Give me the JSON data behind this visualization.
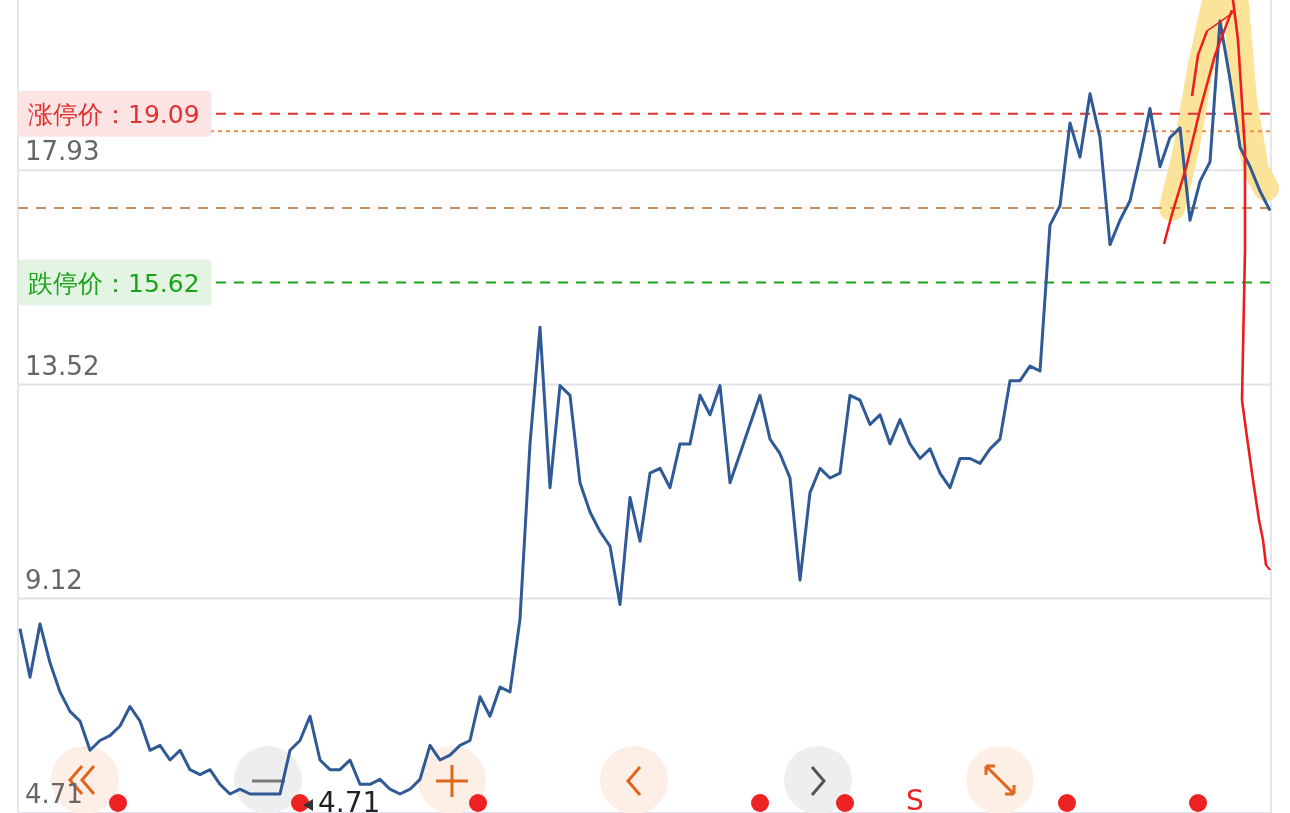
{
  "chart_data": {
    "type": "line",
    "categories": [
      null,
      null,
      null,
      null,
      null,
      null,
      null,
      null,
      null,
      null,
      null,
      null,
      null,
      null,
      null,
      null,
      null,
      null,
      null,
      null,
      null,
      null,
      null,
      null,
      null,
      null,
      null,
      null,
      null,
      null,
      null,
      null,
      null,
      null,
      null,
      null,
      null,
      null,
      null,
      null,
      null,
      null,
      null,
      null,
      null,
      null,
      null,
      null,
      null,
      null,
      null,
      null,
      null,
      null,
      null,
      null,
      null,
      null,
      null,
      null,
      null,
      null,
      null,
      null,
      null,
      null,
      null,
      null,
      null,
      null,
      null,
      null,
      null,
      null,
      null,
      null,
      null,
      null,
      null,
      null,
      null,
      null,
      null,
      null,
      null,
      null,
      null,
      null,
      null,
      null,
      null,
      null,
      null,
      null,
      null,
      null,
      null,
      null,
      null,
      null,
      null,
      null,
      null,
      null,
      null,
      null,
      null,
      null,
      null,
      null,
      null,
      null,
      null,
      null,
      null,
      null,
      null,
      null,
      null,
      null,
      null,
      null,
      null,
      null,
      null,
      null
    ],
    "series": [
      {
        "color": "#2f5a96",
        "values": [
          8.5,
          7.5,
          8.6,
          7.8,
          7.2,
          6.8,
          6.6,
          6.0,
          6.2,
          6.3,
          6.5,
          6.9,
          6.6,
          6.0,
          6.1,
          5.8,
          6.0,
          5.6,
          5.5,
          5.6,
          5.3,
          5.1,
          5.2,
          5.1,
          5.1,
          5.1,
          5.1,
          6.0,
          6.2,
          6.7,
          5.8,
          5.6,
          5.6,
          5.8,
          5.3,
          5.3,
          5.4,
          5.2,
          5.1,
          5.2,
          5.4,
          6.1,
          5.8,
          5.9,
          6.1,
          6.2,
          7.1,
          6.7,
          7.3,
          7.2,
          8.7,
          12.3,
          14.7,
          11.4,
          13.5,
          13.3,
          11.5,
          10.9,
          10.5,
          10.2,
          9.0,
          11.2,
          10.3,
          11.7,
          11.8,
          11.4,
          12.3,
          12.3,
          13.3,
          12.9,
          13.5,
          11.5,
          12.1,
          12.7,
          13.3,
          12.4,
          12.1,
          11.6,
          9.5,
          11.3,
          11.8,
          11.6,
          11.7,
          13.3,
          13.2,
          12.7,
          12.9,
          12.3,
          12.8,
          12.3,
          12.0,
          12.2,
          11.7,
          11.4,
          12.0,
          12.0,
          11.9,
          12.2,
          12.4,
          13.6,
          13.6,
          13.9,
          13.8,
          16.8,
          17.2,
          18.9,
          18.2,
          19.5,
          18.6,
          16.4,
          16.9,
          17.3,
          18.2,
          19.2,
          18.0,
          18.6,
          18.8,
          16.9,
          17.7,
          18.1,
          21.0,
          19.8,
          18.4,
          18.0,
          17.5,
          17.1
        ]
      }
    ],
    "ylim": [
      4.71,
      21.43
    ],
    "yticks": [
      4.71,
      9.12,
      13.52,
      17.93
    ],
    "grid": "y",
    "line_style": "solid",
    "ref_lines": [
      {
        "axis": "y",
        "value": 19.09,
        "label": "涨停价：19.09",
        "color": "#e03030",
        "line_style": "dashed"
      },
      {
        "axis": "y",
        "value": 18.73,
        "color": "#f08a4b",
        "line_style": "dotted"
      },
      {
        "axis": "y",
        "value": 17.15,
        "color": "#c8905a",
        "line_style": "dashed"
      },
      {
        "axis": "y",
        "value": 15.62,
        "label": "跌停价：15.62",
        "color": "#1aa31a",
        "line_style": "dashed"
      }
    ],
    "annotations": [
      "4.71",
      "S"
    ]
  }
}
